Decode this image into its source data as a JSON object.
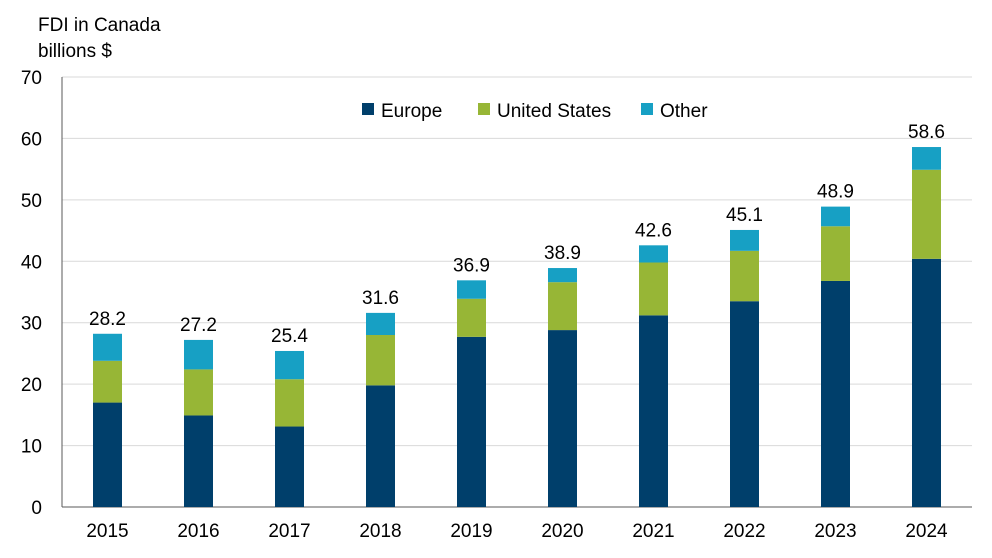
{
  "chart_data": {
    "type": "bar",
    "stacked": true,
    "ylabel": [
      "FDI in Canada",
      "billions $"
    ],
    "ylim": [
      0,
      70
    ],
    "yticks": [
      0,
      10,
      20,
      30,
      40,
      50,
      60,
      70
    ],
    "grid": true,
    "legend_position": "top-center",
    "categories": [
      "2015",
      "2016",
      "2017",
      "2018",
      "2019",
      "2020",
      "2021",
      "2022",
      "2023",
      "2024"
    ],
    "series": [
      {
        "name": "Europe",
        "color": "#003f6b",
        "values": [
          17.0,
          14.9,
          13.1,
          19.8,
          27.7,
          28.8,
          31.2,
          33.5,
          36.8,
          40.4
        ]
      },
      {
        "name": "United States",
        "color": "#97b636",
        "values": [
          6.8,
          7.5,
          7.7,
          8.2,
          6.2,
          7.8,
          8.6,
          8.2,
          8.9,
          14.5
        ]
      },
      {
        "name": "Other",
        "color": "#17a0c4",
        "values": [
          4.4,
          4.8,
          4.6,
          3.6,
          3.0,
          2.3,
          2.8,
          3.4,
          3.2,
          3.7
        ]
      }
    ],
    "totals": [
      "28.2",
      "27.2",
      "25.4",
      "31.6",
      "36.9",
      "38.9",
      "42.6",
      "45.1",
      "48.9",
      "58.6"
    ]
  }
}
